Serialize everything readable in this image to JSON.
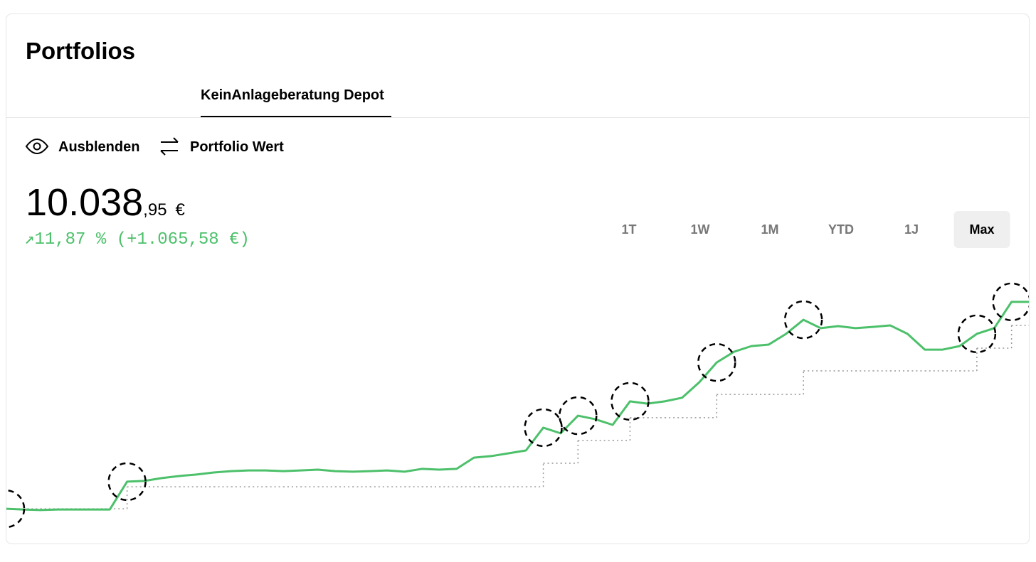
{
  "header": {
    "title": "Portfolios"
  },
  "tabs": [
    "KeinAnlageberatung Depot"
  ],
  "actions": [
    "Ausblenden",
    "Portfolio Wert"
  ],
  "portfolio_value": {
    "integer": "10.038",
    "decimal": ",95",
    "currency": "€"
  },
  "change": "↗11,87 % (+1.065,58 €)",
  "ranges": [
    "1T",
    "1W",
    "1M",
    "YTD",
    "1J",
    "Max"
  ],
  "selected_range": "Max",
  "chart_data": {
    "type": "line",
    "ylim": [
      0,
      100
    ],
    "series": [
      {
        "color": "#4cc06a",
        "values": [
          12.2,
          11.9,
          11.7,
          11.9,
          11.9,
          11.9,
          11.9,
          22.8,
          23.1,
          24.2,
          25,
          25.6,
          26.4,
          26.9,
          27.2,
          27.2,
          26.9,
          27.2,
          27.5,
          26.9,
          26.7,
          26.9,
          27.2,
          26.7,
          27.8,
          27.5,
          27.8,
          32.2,
          32.8,
          33.9,
          35,
          43.9,
          41.7,
          48.6,
          47.2,
          45,
          54.2,
          53.3,
          54.2,
          55.6,
          61.7,
          69.4,
          73.6,
          75.8,
          76.4,
          80.6,
          86.1,
          82.8,
          83.6,
          82.8,
          83.3,
          83.9,
          80.6,
          74.4,
          74.4,
          75.8,
          80.6,
          82.8,
          93.1,
          93.1
        ]
      },
      {
        "color": "#999999",
        "style": "dotted",
        "values": [
          12.2,
          12.2,
          12.2,
          12.2,
          12.2,
          12.2,
          12.2,
          20.8,
          20.8,
          20.8,
          20.8,
          20.8,
          20.8,
          20.8,
          20.8,
          20.8,
          20.8,
          20.8,
          20.8,
          20.8,
          20.8,
          20.8,
          20.8,
          20.8,
          20.8,
          20.8,
          20.8,
          20.8,
          20.8,
          20.8,
          20.8,
          30,
          30,
          38.9,
          38.9,
          38.9,
          47.8,
          47.8,
          47.8,
          47.8,
          47.8,
          56.9,
          56.9,
          56.9,
          56.9,
          56.9,
          66.1,
          66.1,
          66.1,
          66.1,
          66.1,
          66.1,
          66.1,
          66.1,
          66.1,
          66.1,
          75,
          75,
          83.9,
          83.9
        ]
      }
    ]
  }
}
